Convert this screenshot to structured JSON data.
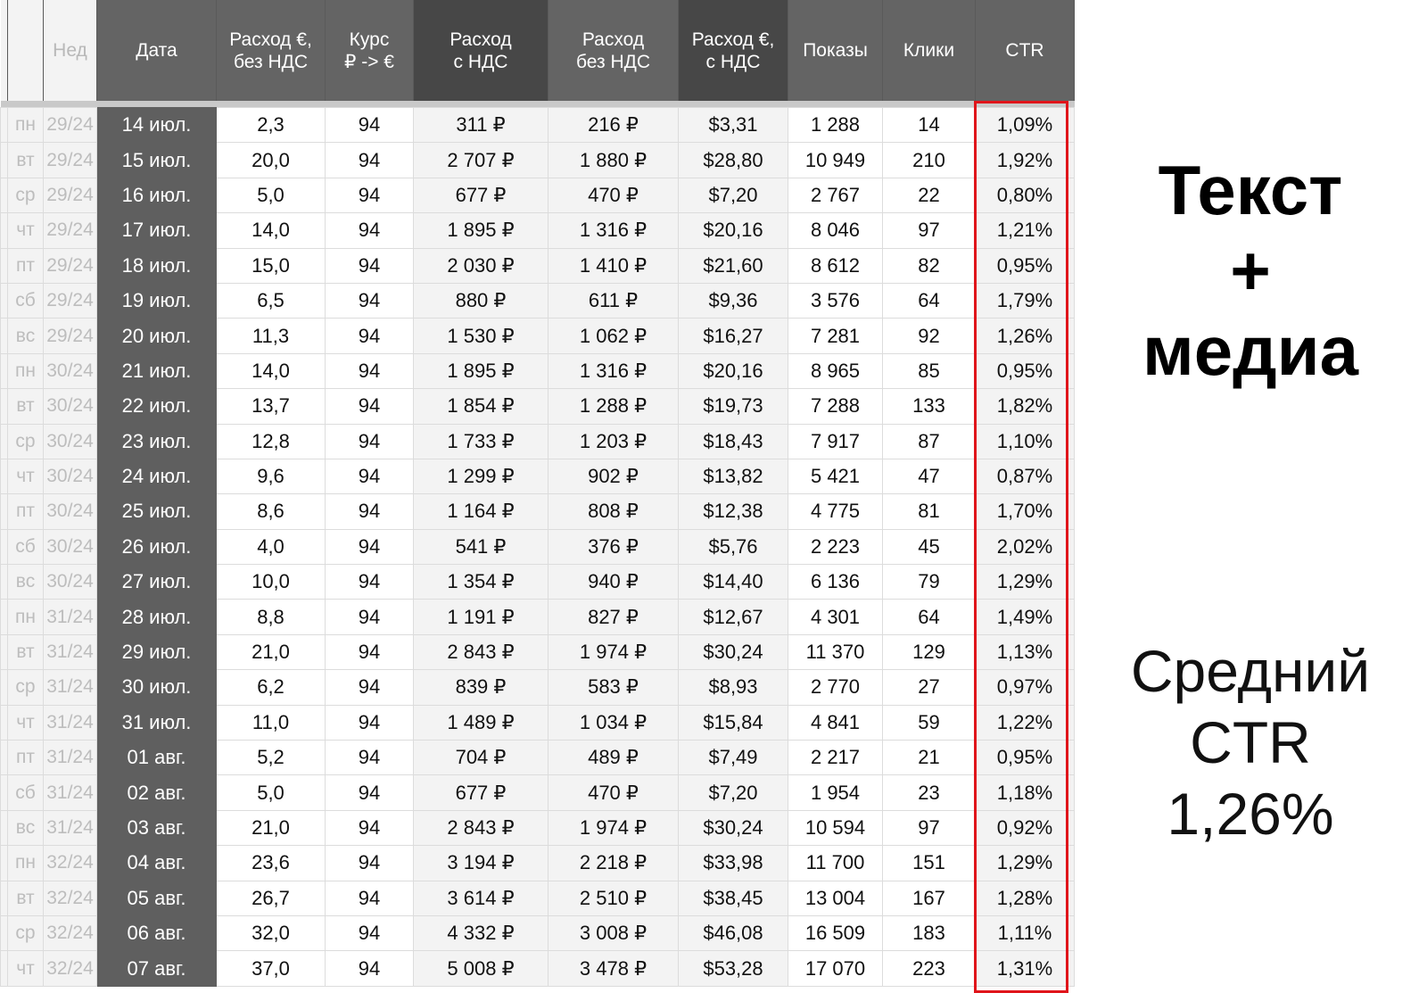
{
  "headers": [
    "",
    "Нед",
    "Дата",
    "Расход €,\nбез НДС",
    "Курс\n₽ -> €",
    "Расход\nс НДС",
    "Расход\nбез НДС",
    "Расход €,\nс НДС",
    "Показы",
    "Клики",
    "CTR"
  ],
  "rows": [
    [
      "пн",
      "29/24",
      "14 июл.",
      "2,3",
      "94",
      "311 ₽",
      "216 ₽",
      "$3,31",
      "1 288",
      "14",
      "1,09%"
    ],
    [
      "вт",
      "29/24",
      "15 июл.",
      "20,0",
      "94",
      "2 707 ₽",
      "1 880 ₽",
      "$28,80",
      "10 949",
      "210",
      "1,92%"
    ],
    [
      "ср",
      "29/24",
      "16 июл.",
      "5,0",
      "94",
      "677 ₽",
      "470 ₽",
      "$7,20",
      "2 767",
      "22",
      "0,80%"
    ],
    [
      "чт",
      "29/24",
      "17 июл.",
      "14,0",
      "94",
      "1 895 ₽",
      "1 316 ₽",
      "$20,16",
      "8 046",
      "97",
      "1,21%"
    ],
    [
      "пт",
      "29/24",
      "18 июл.",
      "15,0",
      "94",
      "2 030 ₽",
      "1 410 ₽",
      "$21,60",
      "8 612",
      "82",
      "0,95%"
    ],
    [
      "сб",
      "29/24",
      "19 июл.",
      "6,5",
      "94",
      "880 ₽",
      "611 ₽",
      "$9,36",
      "3 576",
      "64",
      "1,79%"
    ],
    [
      "вс",
      "29/24",
      "20 июл.",
      "11,3",
      "94",
      "1 530 ₽",
      "1 062 ₽",
      "$16,27",
      "7 281",
      "92",
      "1,26%"
    ],
    [
      "пн",
      "30/24",
      "21 июл.",
      "14,0",
      "94",
      "1 895 ₽",
      "1 316 ₽",
      "$20,16",
      "8 965",
      "85",
      "0,95%"
    ],
    [
      "вт",
      "30/24",
      "22 июл.",
      "13,7",
      "94",
      "1 854 ₽",
      "1 288 ₽",
      "$19,73",
      "7 288",
      "133",
      "1,82%"
    ],
    [
      "ср",
      "30/24",
      "23 июл.",
      "12,8",
      "94",
      "1 733 ₽",
      "1 203 ₽",
      "$18,43",
      "7 917",
      "87",
      "1,10%"
    ],
    [
      "чт",
      "30/24",
      "24 июл.",
      "9,6",
      "94",
      "1 299 ₽",
      "902 ₽",
      "$13,82",
      "5 421",
      "47",
      "0,87%"
    ],
    [
      "пт",
      "30/24",
      "25 июл.",
      "8,6",
      "94",
      "1 164 ₽",
      "808 ₽",
      "$12,38",
      "4 775",
      "81",
      "1,70%"
    ],
    [
      "сб",
      "30/24",
      "26 июл.",
      "4,0",
      "94",
      "541 ₽",
      "376 ₽",
      "$5,76",
      "2 223",
      "45",
      "2,02%"
    ],
    [
      "вс",
      "30/24",
      "27 июл.",
      "10,0",
      "94",
      "1 354 ₽",
      "940 ₽",
      "$14,40",
      "6 136",
      "79",
      "1,29%"
    ],
    [
      "пн",
      "31/24",
      "28 июл.",
      "8,8",
      "94",
      "1 191 ₽",
      "827 ₽",
      "$12,67",
      "4 301",
      "64",
      "1,49%"
    ],
    [
      "вт",
      "31/24",
      "29 июл.",
      "21,0",
      "94",
      "2 843 ₽",
      "1 974 ₽",
      "$30,24",
      "11 370",
      "129",
      "1,13%"
    ],
    [
      "ср",
      "31/24",
      "30 июл.",
      "6,2",
      "94",
      "839 ₽",
      "583 ₽",
      "$8,93",
      "2 770",
      "27",
      "0,97%"
    ],
    [
      "чт",
      "31/24",
      "31 июл.",
      "11,0",
      "94",
      "1 489 ₽",
      "1 034 ₽",
      "$15,84",
      "4 841",
      "59",
      "1,22%"
    ],
    [
      "пт",
      "31/24",
      "01 авг.",
      "5,2",
      "94",
      "704 ₽",
      "489 ₽",
      "$7,49",
      "2 217",
      "21",
      "0,95%"
    ],
    [
      "сб",
      "31/24",
      "02 авг.",
      "5,0",
      "94",
      "677 ₽",
      "470 ₽",
      "$7,20",
      "1 954",
      "23",
      "1,18%"
    ],
    [
      "вс",
      "31/24",
      "03 авг.",
      "21,0",
      "94",
      "2 843 ₽",
      "1 974 ₽",
      "$30,24",
      "10 594",
      "97",
      "0,92%"
    ],
    [
      "пн",
      "32/24",
      "04 авг.",
      "23,6",
      "94",
      "3 194 ₽",
      "2 218 ₽",
      "$33,98",
      "11 700",
      "151",
      "1,29%"
    ],
    [
      "вт",
      "32/24",
      "05 авг.",
      "26,7",
      "94",
      "3 614 ₽",
      "2 510 ₽",
      "$38,45",
      "13 004",
      "167",
      "1,28%"
    ],
    [
      "ср",
      "32/24",
      "06 авг.",
      "32,0",
      "94",
      "4 332 ₽",
      "3 008 ₽",
      "$46,08",
      "16 509",
      "183",
      "1,11%"
    ],
    [
      "чт",
      "32/24",
      "07 авг.",
      "37,0",
      "94",
      "5 008 ₽",
      "3 478 ₽",
      "$53,28",
      "17 070",
      "223",
      "1,31%"
    ]
  ],
  "side": {
    "title": "Текст\n+\nмедиа",
    "summary": "Средний\nCTR\n1,26%"
  },
  "colors": {
    "highlight": "#e0151b",
    "header": "#646464",
    "header_dark": "#474747"
  }
}
